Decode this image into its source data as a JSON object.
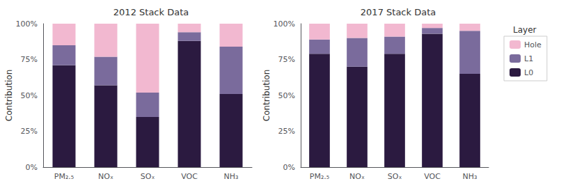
{
  "chart_data": [
    {
      "type": "bar",
      "title": "2012 Stack Data",
      "categories": [
        "PM₂.₅",
        "NOₓ",
        "SOₓ",
        "VOC",
        "NH₃"
      ],
      "ylabel": "Contribution",
      "stacked": true,
      "grid": false,
      "ylim": [
        0,
        1.0
      ],
      "yticks": [
        {
          "value": 0,
          "label": "0%"
        },
        {
          "value": 0.25,
          "label": "25%"
        },
        {
          "value": 0.5,
          "label": "50%"
        },
        {
          "value": 0.75,
          "label": "75%"
        },
        {
          "value": 1.0,
          "label": "100%"
        }
      ],
      "series": [
        {
          "name": "L0",
          "color": "#2B1A40",
          "values": [
            0.71,
            0.57,
            0.35,
            0.88,
            0.51
          ]
        },
        {
          "name": "L1",
          "color": "#7A6B9C",
          "values": [
            0.14,
            0.2,
            0.17,
            0.06,
            0.33
          ]
        },
        {
          "name": "Hole",
          "color": "#F2B8D0",
          "values": [
            0.15,
            0.23,
            0.48,
            0.06,
            0.16
          ]
        }
      ]
    },
    {
      "type": "bar",
      "title": "2017 Stack Data",
      "categories": [
        "PM₂.₅",
        "NOₓ",
        "SOₓ",
        "VOC",
        "NH₃"
      ],
      "ylabel": "Contribution",
      "stacked": true,
      "grid": false,
      "legend": "right",
      "legend_title": "Layer",
      "ylim": [
        0,
        1.0
      ],
      "yticks": [
        {
          "value": 0,
          "label": "0%"
        },
        {
          "value": 0.25,
          "label": "25%"
        },
        {
          "value": 0.5,
          "label": "50%"
        },
        {
          "value": 0.75,
          "label": "75%"
        },
        {
          "value": 1.0,
          "label": "100%"
        }
      ],
      "series": [
        {
          "name": "L0",
          "color": "#2B1A40",
          "values": [
            0.79,
            0.7,
            0.79,
            0.93,
            0.65
          ]
        },
        {
          "name": "L1",
          "color": "#7A6B9C",
          "values": [
            0.1,
            0.2,
            0.12,
            0.04,
            0.3
          ]
        },
        {
          "name": "Hole",
          "color": "#F2B8D0",
          "values": [
            0.11,
            0.1,
            0.09,
            0.03,
            0.05
          ]
        }
      ]
    }
  ]
}
